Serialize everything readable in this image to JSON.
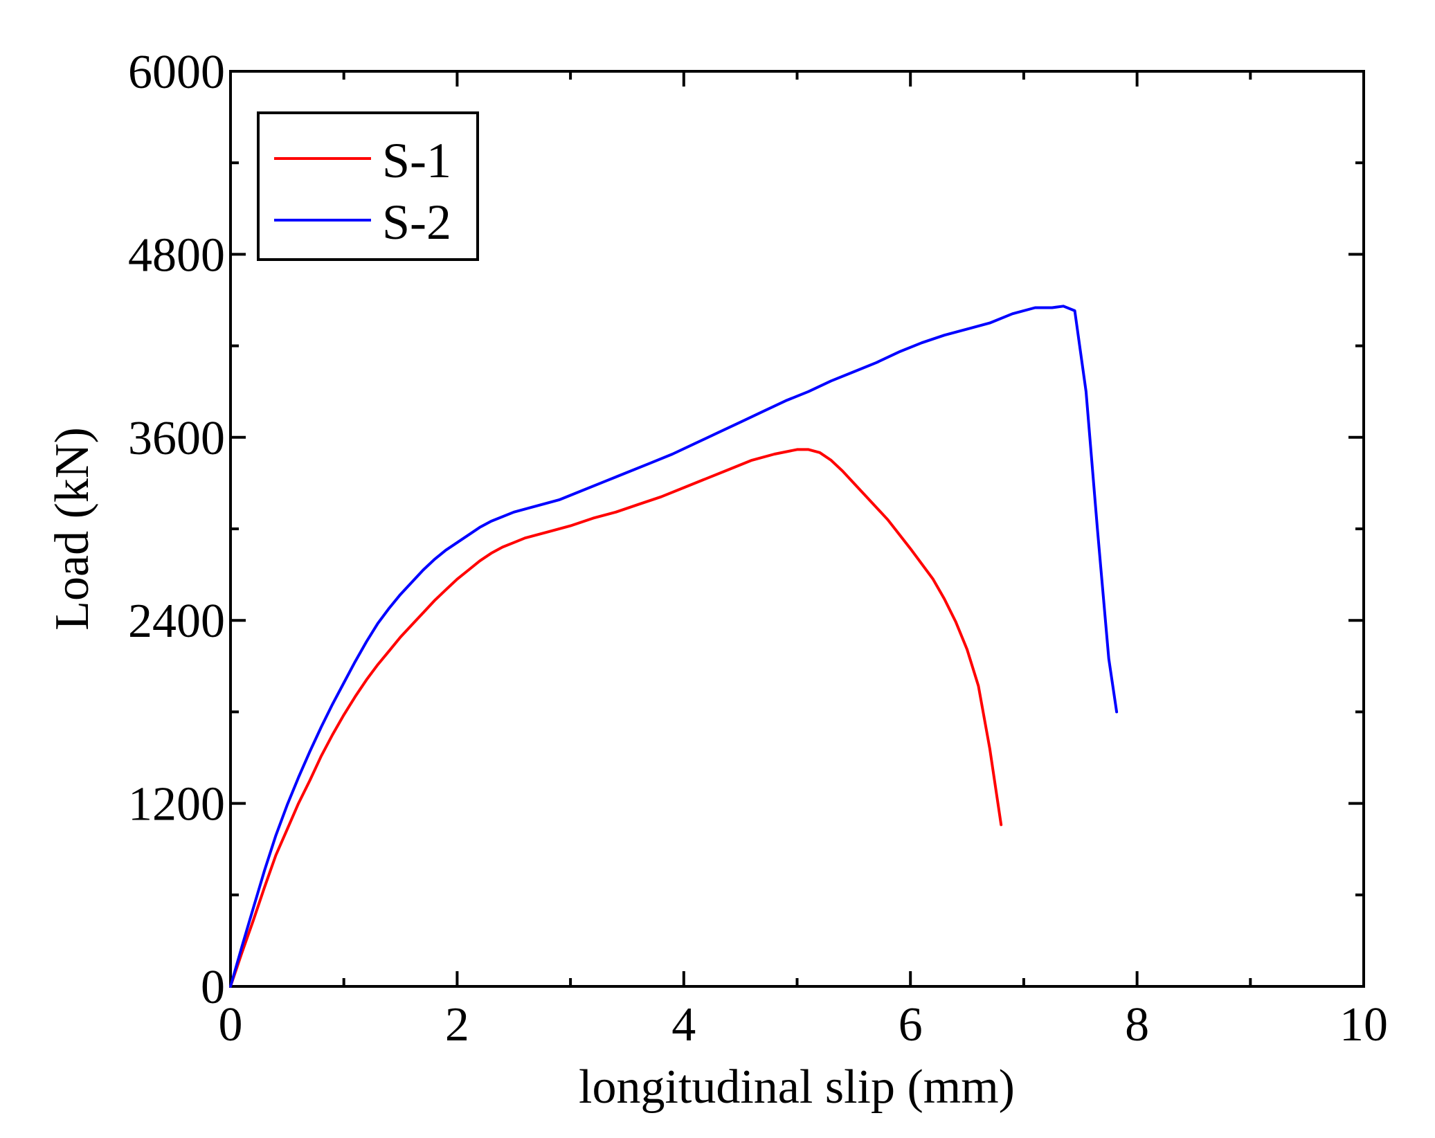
{
  "chart_data": {
    "type": "line",
    "title": "",
    "xlabel": "longitudinal slip (mm)",
    "ylabel": "Load (kN)",
    "xlim": [
      0,
      10
    ],
    "ylim": [
      0,
      6000
    ],
    "x_ticks": [
      0,
      2,
      4,
      6,
      8,
      10
    ],
    "y_ticks": [
      0,
      1200,
      2400,
      3600,
      4800,
      6000
    ],
    "x_minor_step": 1,
    "y_minor_step": 600,
    "grid": false,
    "legend_position": "top-left",
    "series": [
      {
        "name": "S-1",
        "color": "#ff0000",
        "points": [
          [
            0,
            0
          ],
          [
            0.1,
            220
          ],
          [
            0.2,
            430
          ],
          [
            0.3,
            650
          ],
          [
            0.4,
            860
          ],
          [
            0.5,
            1030
          ],
          [
            0.6,
            1200
          ],
          [
            0.7,
            1350
          ],
          [
            0.8,
            1510
          ],
          [
            0.9,
            1650
          ],
          [
            1.0,
            1780
          ],
          [
            1.1,
            1900
          ],
          [
            1.2,
            2010
          ],
          [
            1.3,
            2110
          ],
          [
            1.4,
            2200
          ],
          [
            1.5,
            2290
          ],
          [
            1.6,
            2370
          ],
          [
            1.7,
            2450
          ],
          [
            1.8,
            2530
          ],
          [
            1.9,
            2600
          ],
          [
            2.0,
            2670
          ],
          [
            2.1,
            2730
          ],
          [
            2.2,
            2790
          ],
          [
            2.3,
            2840
          ],
          [
            2.4,
            2880
          ],
          [
            2.5,
            2910
          ],
          [
            2.6,
            2940
          ],
          [
            2.7,
            2960
          ],
          [
            2.8,
            2980
          ],
          [
            3.0,
            3020
          ],
          [
            3.2,
            3070
          ],
          [
            3.4,
            3110
          ],
          [
            3.6,
            3160
          ],
          [
            3.8,
            3210
          ],
          [
            4.0,
            3270
          ],
          [
            4.2,
            3330
          ],
          [
            4.4,
            3390
          ],
          [
            4.6,
            3450
          ],
          [
            4.8,
            3490
          ],
          [
            5.0,
            3520
          ],
          [
            5.1,
            3520
          ],
          [
            5.2,
            3500
          ],
          [
            5.3,
            3450
          ],
          [
            5.4,
            3380
          ],
          [
            5.5,
            3300
          ],
          [
            5.6,
            3220
          ],
          [
            5.8,
            3060
          ],
          [
            6.0,
            2870
          ],
          [
            6.2,
            2670
          ],
          [
            6.3,
            2540
          ],
          [
            6.4,
            2390
          ],
          [
            6.5,
            2210
          ],
          [
            6.6,
            1970
          ],
          [
            6.7,
            1560
          ],
          [
            6.8,
            1060
          ]
        ]
      },
      {
        "name": "S-2",
        "color": "#0000ff",
        "points": [
          [
            0,
            0
          ],
          [
            0.1,
            260
          ],
          [
            0.2,
            510
          ],
          [
            0.3,
            760
          ],
          [
            0.4,
            990
          ],
          [
            0.5,
            1190
          ],
          [
            0.6,
            1370
          ],
          [
            0.7,
            1540
          ],
          [
            0.8,
            1700
          ],
          [
            0.9,
            1850
          ],
          [
            1.0,
            1990
          ],
          [
            1.1,
            2130
          ],
          [
            1.2,
            2260
          ],
          [
            1.3,
            2380
          ],
          [
            1.4,
            2480
          ],
          [
            1.5,
            2570
          ],
          [
            1.6,
            2650
          ],
          [
            1.7,
            2730
          ],
          [
            1.8,
            2800
          ],
          [
            1.9,
            2860
          ],
          [
            2.0,
            2910
          ],
          [
            2.1,
            2960
          ],
          [
            2.2,
            3010
          ],
          [
            2.3,
            3050
          ],
          [
            2.5,
            3110
          ],
          [
            2.7,
            3150
          ],
          [
            2.9,
            3190
          ],
          [
            3.1,
            3250
          ],
          [
            3.3,
            3310
          ],
          [
            3.5,
            3370
          ],
          [
            3.7,
            3430
          ],
          [
            3.9,
            3490
          ],
          [
            4.1,
            3560
          ],
          [
            4.3,
            3630
          ],
          [
            4.5,
            3700
          ],
          [
            4.7,
            3770
          ],
          [
            4.9,
            3840
          ],
          [
            5.1,
            3900
          ],
          [
            5.3,
            3970
          ],
          [
            5.5,
            4030
          ],
          [
            5.7,
            4090
          ],
          [
            5.9,
            4160
          ],
          [
            6.1,
            4220
          ],
          [
            6.3,
            4270
          ],
          [
            6.5,
            4310
          ],
          [
            6.7,
            4350
          ],
          [
            6.9,
            4410
          ],
          [
            7.1,
            4450
          ],
          [
            7.25,
            4450
          ],
          [
            7.35,
            4460
          ],
          [
            7.45,
            4430
          ],
          [
            7.55,
            3900
          ],
          [
            7.65,
            3000
          ],
          [
            7.75,
            2150
          ],
          [
            7.82,
            1800
          ]
        ]
      }
    ]
  }
}
